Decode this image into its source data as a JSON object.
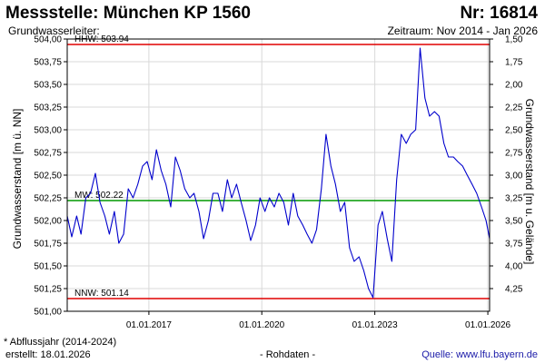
{
  "header": {
    "title": "Messstelle: München KP 1560",
    "station_nr": "Nr: 16814",
    "aquifer_label": "Grundwasserleiter:",
    "period_label": "Zeitraum: Nov 2014 - Jan 2026"
  },
  "footer": {
    "footnote": "* Abflussjahr (2014-2024)",
    "created": "erstellt:  18.01.2026",
    "data_note": "- Rohdaten -",
    "source": "Quelle: www.lfu.bayern.de"
  },
  "colors": {
    "series": "#0000cc",
    "hhw_nnw_line": "#e00000",
    "mw_line": "#009900",
    "grid": "#d8d8d8",
    "frame": "#000000"
  },
  "chart_data": {
    "type": "line",
    "ylabel": "Grundwasserstand [m ü. NN]",
    "ylabel_right": "Grundwasserstand [m u. Gelände]",
    "ylim": [
      501.0,
      504.0
    ],
    "ylim_right": [
      4.5,
      1.5
    ],
    "y_ticks": [
      "501,00",
      "501,25",
      "501,50",
      "501,75",
      "502,00",
      "502,25",
      "502,50",
      "502,75",
      "503,00",
      "503,25",
      "503,50",
      "503,75",
      "504,00"
    ],
    "y_ticks_right": [
      "1,50",
      "1,75",
      "2,00",
      "2,25",
      "2,50",
      "2,75",
      "3,00",
      "3,25",
      "3,50",
      "3,75",
      "4,00",
      "4,25"
    ],
    "y_ticks_right_values": [
      1.5,
      1.75,
      2.0,
      2.25,
      2.5,
      2.75,
      3.0,
      3.25,
      3.5,
      3.75,
      4.0,
      4.25
    ],
    "xlim": [
      "2014-11-01",
      "2026-01-18"
    ],
    "x_ticks": [
      "01.01.2017",
      "01.01.2020",
      "01.01.2023",
      "01.01.2026"
    ],
    "x_tick_dates": [
      "2017-01-01",
      "2020-01-01",
      "2023-01-01",
      "2026-01-01"
    ],
    "grid": true,
    "reference_lines": [
      {
        "label": "HHW: 503.94",
        "value": 503.94
      },
      {
        "label": "MW: 502.22",
        "value": 502.22
      },
      {
        "label": "NNW: 501.14",
        "value": 501.14
      }
    ],
    "series": [
      {
        "x": [
          "2014-11-01",
          "2014-12-15",
          "2015-02-01",
          "2015-03-15",
          "2015-05-01",
          "2015-06-15",
          "2015-08-01",
          "2015-09-15",
          "2015-11-01",
          "2015-12-15",
          "2016-02-01",
          "2016-03-15",
          "2016-05-01",
          "2016-06-15",
          "2016-08-01",
          "2016-09-15",
          "2016-11-01",
          "2016-12-15",
          "2017-02-01",
          "2017-03-15",
          "2017-05-01",
          "2017-06-15",
          "2017-08-01",
          "2017-09-15",
          "2017-11-01",
          "2017-12-15",
          "2018-02-01",
          "2018-03-15",
          "2018-05-01",
          "2018-06-15",
          "2018-08-01",
          "2018-09-15",
          "2018-11-01",
          "2018-12-15",
          "2019-02-01",
          "2019-03-15",
          "2019-05-01",
          "2019-06-15",
          "2019-08-01",
          "2019-09-15",
          "2019-11-01",
          "2019-12-15",
          "2020-02-01",
          "2020-03-15",
          "2020-05-01",
          "2020-06-15",
          "2020-08-01",
          "2020-09-15",
          "2020-11-01",
          "2020-12-15",
          "2021-02-01",
          "2021-03-15",
          "2021-05-01",
          "2021-06-15",
          "2021-08-01",
          "2021-09-15",
          "2021-11-01",
          "2021-12-15",
          "2022-02-01",
          "2022-03-15",
          "2022-05-01",
          "2022-06-15",
          "2022-08-01",
          "2022-09-15",
          "2022-11-01",
          "2022-12-15",
          "2023-02-01",
          "2023-03-15",
          "2023-05-01",
          "2023-06-15",
          "2023-08-01",
          "2023-09-15",
          "2023-11-01",
          "2023-12-15",
          "2024-02-01",
          "2024-03-15",
          "2024-05-01",
          "2024-06-15",
          "2024-08-01",
          "2024-09-15",
          "2024-11-01",
          "2024-12-15",
          "2025-02-01",
          "2025-03-15",
          "2025-05-01",
          "2025-06-15",
          "2025-08-01",
          "2025-09-15",
          "2025-11-01",
          "2025-12-15",
          "2026-01-18"
        ],
        "y": [
          502.05,
          501.82,
          502.05,
          501.85,
          502.25,
          502.3,
          502.52,
          502.2,
          502.05,
          501.85,
          502.1,
          501.75,
          501.85,
          502.35,
          502.25,
          502.4,
          502.6,
          502.65,
          502.45,
          502.78,
          502.55,
          502.4,
          502.15,
          502.7,
          502.55,
          502.35,
          502.25,
          502.3,
          502.1,
          501.8,
          502.0,
          502.3,
          502.3,
          502.1,
          502.45,
          502.25,
          502.4,
          502.2,
          502.0,
          501.78,
          501.95,
          502.25,
          502.1,
          502.25,
          502.15,
          502.3,
          502.2,
          501.95,
          502.3,
          502.05,
          501.95,
          501.85,
          501.75,
          501.9,
          502.35,
          502.95,
          502.6,
          502.4,
          502.1,
          502.2,
          501.7,
          501.55,
          501.6,
          501.45,
          501.25,
          501.15,
          501.95,
          502.1,
          501.8,
          501.55,
          502.45,
          502.95,
          502.85,
          502.95,
          503.0,
          503.9,
          503.35,
          503.15,
          503.2,
          503.15,
          502.85,
          502.7,
          502.7,
          502.65,
          502.6,
          502.5,
          502.4,
          502.3,
          502.15,
          502.0,
          501.8
        ]
      }
    ]
  }
}
